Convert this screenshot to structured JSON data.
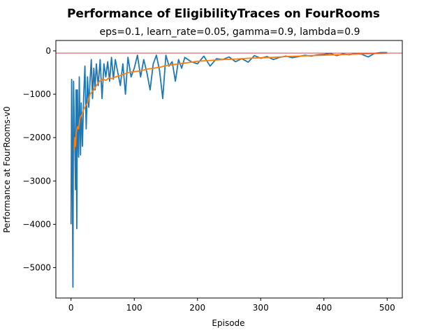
{
  "chart_data": {
    "type": "line",
    "title": "Performance of EligibilityTraces on FourRooms",
    "subtitle": "eps=0.1, learn_rate=0.05, gamma=0.9, lambda=0.9",
    "xlabel": "Episode",
    "ylabel": "Performance at FourRooms-v0",
    "xlim": [
      -24,
      524
    ],
    "ylim": [
      -5700,
      240
    ],
    "x_ticks": [
      0,
      100,
      200,
      300,
      400,
      500
    ],
    "y_ticks": [
      -5000,
      -4000,
      -3000,
      -2000,
      -1000,
      0
    ],
    "reference_line": {
      "y": -50,
      "color": "#d62728"
    },
    "series": [
      {
        "color": "#1f77b4",
        "x": [
          0,
          1,
          2,
          3,
          4,
          5,
          6,
          7,
          8,
          9,
          10,
          11,
          12,
          13,
          14,
          15,
          16,
          18,
          20,
          22,
          24,
          26,
          28,
          30,
          32,
          34,
          36,
          38,
          40,
          43,
          46,
          49,
          52,
          55,
          58,
          61,
          64,
          67,
          70,
          74,
          78,
          82,
          86,
          90,
          95,
          100,
          105,
          110,
          115,
          120,
          125,
          130,
          135,
          140,
          145,
          150,
          155,
          160,
          165,
          170,
          175,
          180,
          190,
          200,
          210,
          220,
          230,
          240,
          250,
          260,
          270,
          280,
          290,
          300,
          310,
          320,
          330,
          340,
          350,
          360,
          370,
          380,
          390,
          400,
          410,
          420,
          430,
          440,
          450,
          460,
          470,
          480,
          490,
          500
        ],
        "values": [
          -4000,
          -660,
          -2500,
          -5450,
          -700,
          -1500,
          -2200,
          -3200,
          -900,
          -4100,
          -900,
          -2000,
          -2450,
          -600,
          -1700,
          -2400,
          -1200,
          -2200,
          -1050,
          -350,
          -1800,
          -600,
          -1300,
          -700,
          -200,
          -1100,
          -400,
          -900,
          -300,
          -800,
          -200,
          -1100,
          -300,
          -600,
          -250,
          -700,
          -150,
          -650,
          -200,
          -500,
          -800,
          -300,
          -1000,
          -150,
          -600,
          -400,
          -100,
          -600,
          -200,
          -500,
          -900,
          -300,
          -100,
          -450,
          -1100,
          -100,
          -350,
          -250,
          -700,
          -200,
          -400,
          -150,
          -250,
          -300,
          -120,
          -350,
          -180,
          -200,
          -140,
          -250,
          -180,
          -260,
          -110,
          -170,
          -130,
          -200,
          -150,
          -120,
          -160,
          -130,
          -100,
          -120,
          -90,
          -80,
          -60,
          -110,
          -70,
          -90,
          -60,
          -80,
          -140,
          -60,
          -40,
          -40
        ]
      },
      {
        "color": "#ff7f0e",
        "x": [
          5,
          6,
          7,
          8,
          10,
          12,
          14,
          16,
          18,
          20,
          22,
          24,
          26,
          28,
          30,
          33,
          36,
          40,
          45,
          50,
          55,
          60,
          65,
          70,
          80,
          90,
          100,
          110,
          120,
          130,
          140,
          150,
          160,
          170,
          180,
          190,
          200,
          220,
          240,
          260,
          280,
          300,
          320,
          340,
          360,
          380,
          400,
          420,
          440,
          460,
          480,
          500
        ],
        "values": [
          -2300,
          -2000,
          -2200,
          -1900,
          -1750,
          -1800,
          -1550,
          -1500,
          -1450,
          -1350,
          -1300,
          -1250,
          -1200,
          -1100,
          -1000,
          -950,
          -900,
          -800,
          -700,
          -650,
          -680,
          -620,
          -640,
          -600,
          -560,
          -500,
          -480,
          -460,
          -420,
          -400,
          -380,
          -340,
          -320,
          -300,
          -280,
          -260,
          -240,
          -220,
          -200,
          -190,
          -170,
          -160,
          -150,
          -130,
          -120,
          -110,
          -100,
          -90,
          -80,
          -70,
          -60,
          -50
        ]
      }
    ]
  }
}
